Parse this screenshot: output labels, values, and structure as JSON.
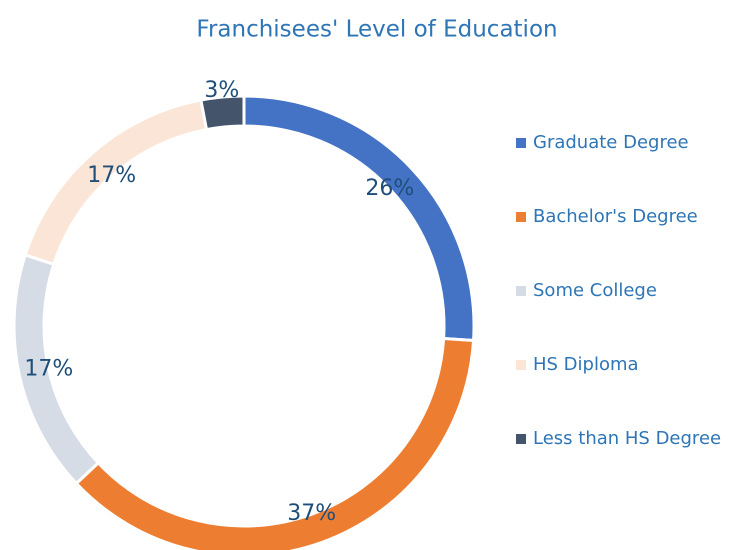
{
  "chart_data": {
    "type": "donut",
    "title": "Franchisees' Level of Education",
    "categories": [
      "Graduate Degree",
      "Bachelor's Degree",
      "Some College",
      "HS Diploma",
      "Less than HS Degree"
    ],
    "values": [
      26,
      37,
      17,
      17,
      3
    ],
    "value_labels": [
      "26%",
      "37%",
      "17%",
      "17%",
      "3%"
    ],
    "colors": [
      "#4472c4",
      "#ed7d31",
      "#d6dce5",
      "#fbe5d6",
      "#44546a"
    ],
    "legend": "right"
  }
}
